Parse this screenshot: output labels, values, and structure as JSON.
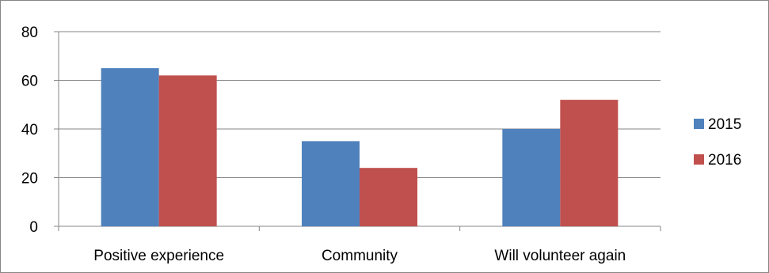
{
  "chart_data": {
    "type": "bar",
    "title": "",
    "xlabel": "",
    "ylabel": "",
    "categories": [
      "Positive experience",
      "Community",
      "Will volunteer again"
    ],
    "series": [
      {
        "name": "2015",
        "values": [
          65,
          35,
          40
        ],
        "color": "#4F81BD"
      },
      {
        "name": "2016",
        "values": [
          62,
          24,
          52
        ],
        "color": "#C0504D"
      }
    ],
    "ylim": [
      0,
      80
    ],
    "yticks": [
      "0",
      "20",
      "40",
      "60",
      "80"
    ],
    "grid": true,
    "legend": "right"
  }
}
